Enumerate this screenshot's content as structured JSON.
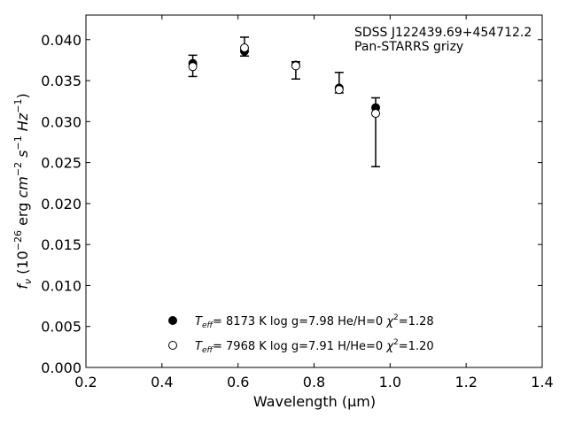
{
  "chart_data": {
    "type": "scatter",
    "title": "",
    "xlabel": "Wavelength (μm)",
    "ylabel": "f_ν (10^-26 erg cm^-2 s^-1 Hz^-1)",
    "xlim": [
      0.2,
      1.4
    ],
    "ylim": [
      0.0,
      0.043
    ],
    "xticks": [
      0.2,
      0.4,
      0.6,
      0.8,
      1.0,
      1.2,
      1.4
    ],
    "xtick_labels": [
      "0.2",
      "0.4",
      "0.6",
      "0.8",
      "1.0",
      "1.2",
      "1.4"
    ],
    "yticks": [
      0.0,
      0.005,
      0.01,
      0.015,
      0.02,
      0.025,
      0.03,
      0.035,
      0.04
    ],
    "ytick_labels": [
      "0.000",
      "0.005",
      "0.010",
      "0.015",
      "0.020",
      "0.025",
      "0.030",
      "0.035",
      "0.040"
    ],
    "grid": false,
    "annotations": [
      "SDSS J122439.69+454712.2",
      "Pan-STARRS grizy"
    ],
    "observed": {
      "x": [
        0.481,
        0.617,
        0.752,
        0.866,
        0.962
      ],
      "y": [
        0.0368,
        0.0391,
        0.0363,
        0.0348,
        0.0287
      ],
      "yerr_low": [
        0.0013,
        0.0011,
        0.0011,
        0.0013,
        0.0042
      ],
      "yerr_high": [
        0.0013,
        0.0012,
        0.001,
        0.0012,
        0.0042
      ]
    },
    "series": [
      {
        "marker": "filled-circle",
        "x": [
          0.481,
          0.617,
          0.752,
          0.866,
          0.962
        ],
        "y": [
          0.0371,
          0.0386,
          0.0369,
          0.0341,
          0.0317
        ],
        "legend": {
          "teff": "8173 K",
          "logg": "log g=7.98",
          "comp": "He/H=0",
          "chi2": "=1.28"
        }
      },
      {
        "marker": "open-circle",
        "x": [
          0.481,
          0.617,
          0.752,
          0.866,
          0.962
        ],
        "y": [
          0.0367,
          0.039,
          0.0368,
          0.0339,
          0.031
        ],
        "legend": {
          "teff": "7968 K",
          "logg": "log g=7.91",
          "comp": "H/He=0",
          "chi2": "=1.20"
        }
      }
    ],
    "legend_placement": "lower-center"
  }
}
